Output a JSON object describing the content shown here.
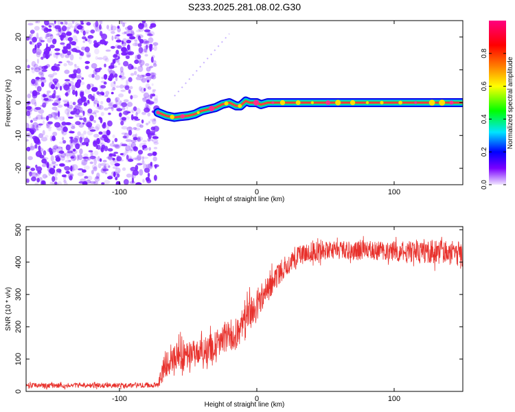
{
  "title": "S233.2025.281.08.02.G30",
  "chart_data": [
    {
      "type": "heatmap",
      "title": "S233.2025.281.08.02.G30",
      "xlabel": "Height of straight line (km)",
      "ylabel": "Frequency (Hz)",
      "xlim": [
        -168,
        150
      ],
      "ylim": [
        -25,
        25
      ],
      "xticks": [
        -100,
        0,
        100
      ],
      "xtick_labels": [
        "-100",
        "0",
        "100"
      ],
      "yticks": [
        -20,
        -10,
        0,
        10,
        20
      ],
      "ytick_labels": [
        "-20",
        "-10",
        "0",
        "10",
        "20"
      ],
      "noise_region_x": [
        -168,
        -73
      ],
      "signal_track": {
        "x": [
          -72,
          -66,
          -60,
          -55,
          -50,
          -45,
          -40,
          -35,
          -30,
          -25,
          -20,
          -15,
          -12,
          -8,
          -5,
          0,
          3,
          8,
          15,
          40,
          80,
          120,
          150
        ],
        "freq_hz": [
          -3,
          -4,
          -4.5,
          -4.2,
          -4,
          -3.5,
          -2.5,
          -2,
          -1.5,
          -0.5,
          0,
          -1,
          -1,
          0.5,
          0,
          0,
          -0.6,
          0,
          0,
          0,
          0,
          0,
          0
        ]
      },
      "faint_trace": {
        "x": [
          -60,
          -20
        ],
        "freq_hz": [
          2,
          21
        ]
      },
      "colorbar": {
        "label": "Normalized spectral amplitude",
        "range": [
          0,
          1
        ],
        "ticks": [
          0.0,
          0.2,
          0.4,
          0.6,
          0.8
        ],
        "tick_labels": [
          "0.0",
          "0.2",
          "0.4",
          "0.6",
          "0.8"
        ],
        "colors": [
          "#f0e6ff",
          "#7a00ff",
          "#0000ff",
          "#00e5ff",
          "#00ff00",
          "#ffff00",
          "#ff8000",
          "#ff0000",
          "#ff0080"
        ]
      },
      "colors": {
        "noise": "#7a1fff",
        "track_outer": "#0000e6",
        "track_mid": "#00e676",
        "track_core": "#ff3d3d",
        "track_center": "#ff2e8a"
      }
    },
    {
      "type": "line",
      "xlabel": "Height of straight line (km)",
      "ylabel": "SNR (10 * v/v)",
      "xlim": [
        -168,
        150
      ],
      "ylim": [
        0,
        510
      ],
      "xticks": [
        -100,
        0,
        100
      ],
      "xtick_labels": [
        "-100",
        "0",
        "100"
      ],
      "yticks": [
        0,
        100,
        200,
        300,
        400,
        500
      ],
      "ytick_labels": [
        "0",
        "100",
        "200",
        "300",
        "400",
        "500"
      ],
      "series": [
        {
          "name": "SNR",
          "color": "#e8302b",
          "x": [
            -168,
            -120,
            -72,
            -68,
            -65,
            -60,
            -55,
            -50,
            -45,
            -40,
            -35,
            -30,
            -25,
            -20,
            -15,
            -10,
            -5,
            0,
            5,
            10,
            15,
            20,
            25,
            30,
            40,
            60,
            80,
            100,
            120,
            150
          ],
          "y": [
            18,
            18,
            20,
            70,
            95,
            105,
            110,
            112,
            120,
            130,
            130,
            140,
            160,
            170,
            175,
            205,
            240,
            270,
            300,
            330,
            360,
            385,
            405,
            418,
            432,
            435,
            436,
            434,
            432,
            428
          ],
          "noise_amplitude": [
            8,
            8,
            8,
            45,
            45,
            50,
            50,
            45,
            45,
            45,
            45,
            45,
            45,
            50,
            55,
            60,
            55,
            50,
            45,
            40,
            35,
            35,
            35,
            30,
            30,
            30,
            30,
            30,
            35,
            40
          ]
        }
      ]
    }
  ]
}
